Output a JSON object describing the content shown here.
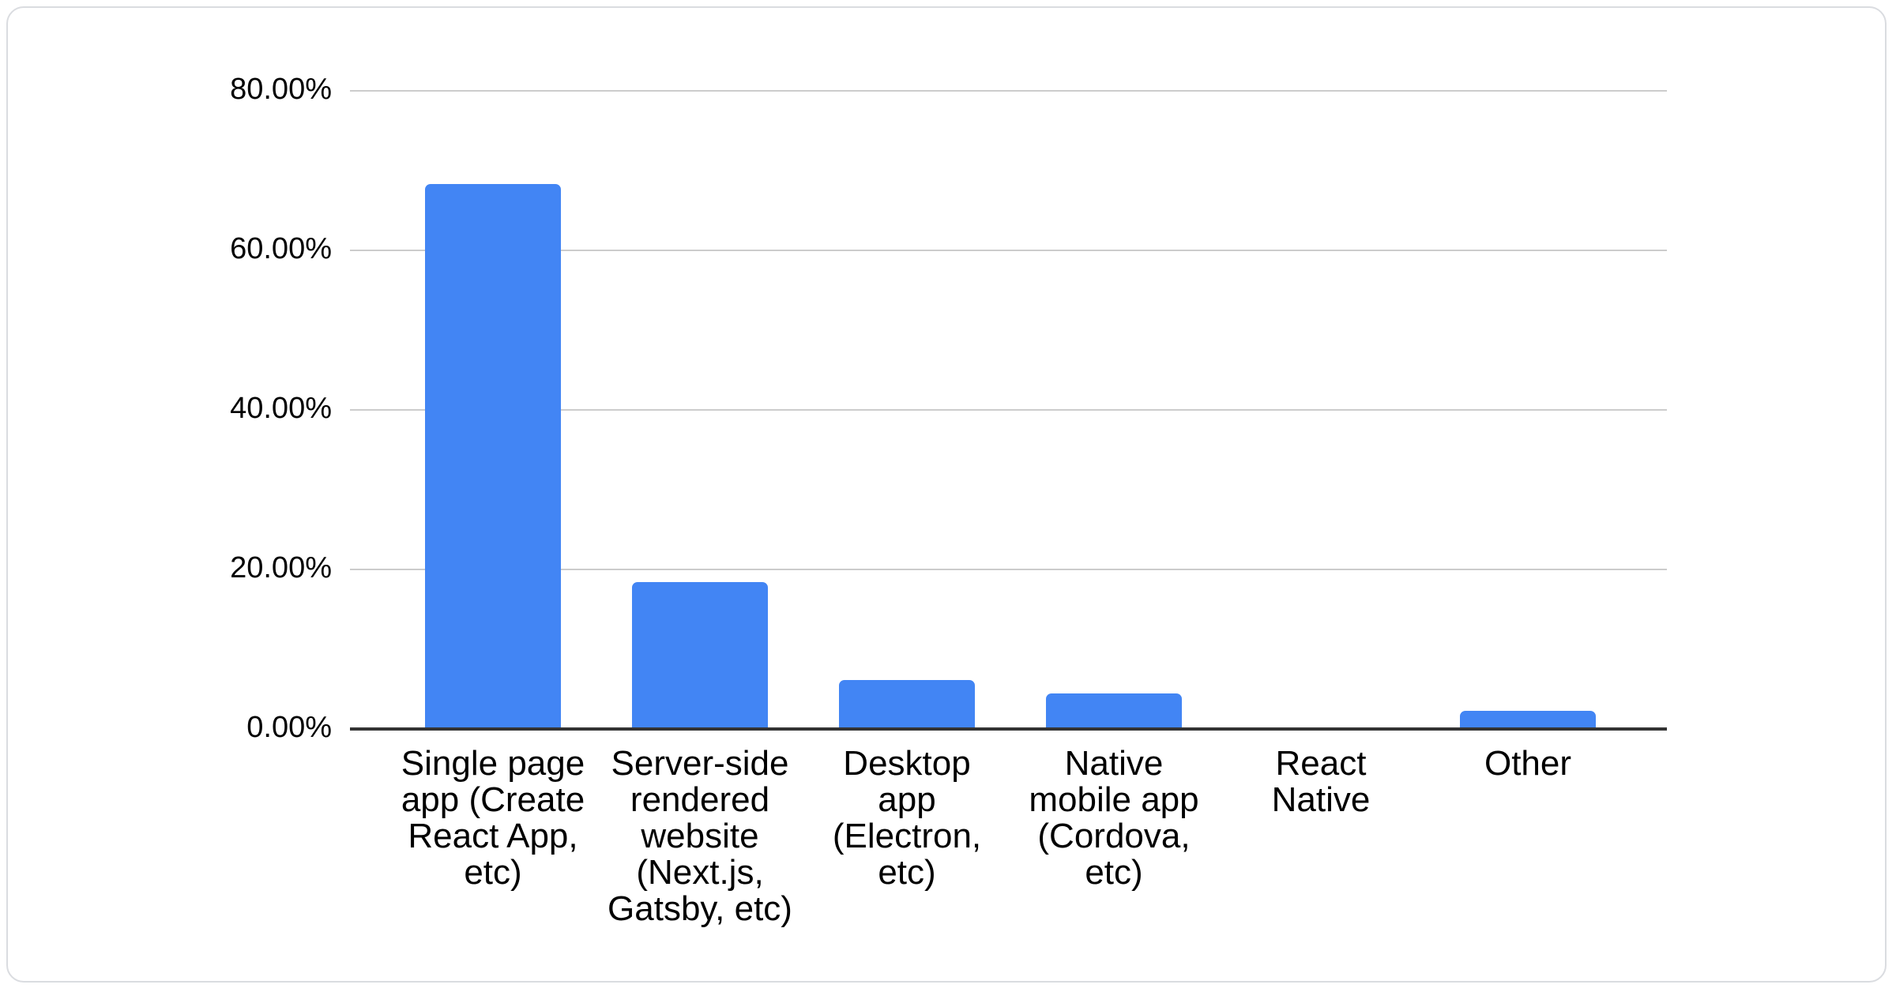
{
  "chart_data": {
    "type": "bar",
    "categories": [
      "Single page app (Create React App, etc)",
      "Server-side rendered website (Next.js, Gatsby, etc)",
      "Desktop app (Electron, etc)",
      "Native mobile app (Cordova, etc)",
      "React Native",
      "Other"
    ],
    "category_label_lines": [
      [
        "Single page",
        "app (Create",
        "React App,",
        "etc)"
      ],
      [
        "Server-side",
        "rendered",
        "website",
        "(Next.js,",
        "Gatsby, etc)"
      ],
      [
        "Desktop",
        "app",
        "(Electron,",
        "etc)"
      ],
      [
        "Native",
        "mobile app",
        "(Cordova,",
        "etc)"
      ],
      [
        "React",
        "Native"
      ],
      [
        "Other"
      ]
    ],
    "values": [
      68.3,
      18.4,
      6.1,
      4.5,
      0,
      2.3
    ],
    "unit": "%",
    "y_ticks": [
      {
        "value": 80,
        "label": "80.00%"
      },
      {
        "value": 60,
        "label": "60.00%"
      },
      {
        "value": 40,
        "label": "40.00%"
      },
      {
        "value": 20,
        "label": "20.00%"
      },
      {
        "value": 0,
        "label": "0.00%"
      }
    ],
    "ylim": [
      0,
      80
    ],
    "xlabel": "",
    "ylabel": "",
    "grid": true,
    "legend": "none",
    "bar_color": "#4285f4",
    "gridline_color": "#cccccc",
    "axis_line_color": "#333333",
    "text_color": "#000000"
  }
}
